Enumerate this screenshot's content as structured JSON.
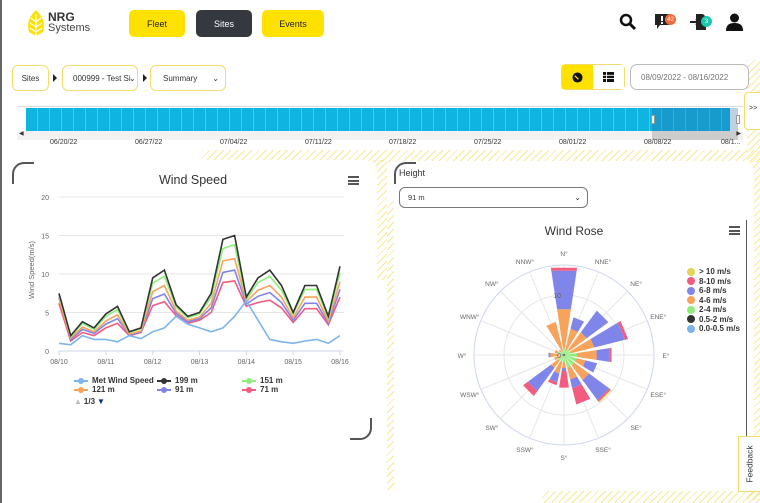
{
  "header": {
    "logo_line1": "NRG",
    "logo_line2": "Systems",
    "nav": [
      {
        "label": "Fleet",
        "active": false
      },
      {
        "label": "Sites",
        "active": true
      },
      {
        "label": "Events",
        "active": false
      }
    ],
    "alerts_count": "42",
    "exports_count": "3",
    "icons": [
      "search-icon",
      "alert-icon",
      "export-icon",
      "user-icon"
    ]
  },
  "breadcrumb": {
    "sites_label": "Sites",
    "site_select": "000999 - Test Si",
    "view_select": "Summary"
  },
  "date_range": {
    "placeholder": "08/09/2022 - 08/16/2022"
  },
  "timeline": {
    "dates": [
      "06/20/22",
      "06/27/22",
      "07/04/22",
      "07/11/22",
      "07/18/22",
      "07/25/22",
      "08/01/22",
      "08/08/22",
      "08/1..."
    ],
    "expand_label": ">>"
  },
  "height_filter": {
    "label": "Height",
    "value": "91 m"
  },
  "feedback_label": "Feedback",
  "colors": {
    "accent": "#ffe100",
    "timeline": "#10b4e0",
    "dark": "#35383e"
  },
  "chart_data": [
    {
      "type": "line",
      "title": "Wind Speed",
      "ylabel": "Wind Speed(m/s)",
      "ylim": [
        0,
        20
      ],
      "yticks": [
        "0",
        "5",
        "10",
        "15",
        "20"
      ],
      "xticks": [
        "08/10",
        "08/11",
        "08/12",
        "08/13",
        "08/14",
        "08/15",
        "08/16"
      ],
      "x_step_hours": 6,
      "legend_page": "1/3",
      "series": [
        {
          "name": "Met Wind Speed",
          "color": "#7cb5ec",
          "values": [
            1.0,
            0.8,
            2.0,
            1.5,
            1.5,
            1.2,
            2.0,
            1.6,
            2.5,
            3.0,
            4.5,
            3.5,
            3.0,
            2.5,
            3.0,
            4.5,
            6.5,
            4.0,
            1.5,
            1.2,
            1.0,
            1.3,
            1.5,
            1.0,
            2.0
          ]
        },
        {
          "name": "199 m",
          "color": "#333333",
          "values": [
            7.5,
            2.0,
            3.8,
            3.0,
            4.8,
            5.8,
            2.5,
            3.0,
            9.5,
            10.5,
            6.0,
            4.5,
            5.0,
            7.5,
            14.5,
            15.0,
            7.0,
            9.5,
            10.5,
            8.5,
            5.0,
            8.5,
            8.5,
            4.5,
            11.0
          ]
        },
        {
          "name": "151 m",
          "color": "#90ed7d",
          "values": [
            7.3,
            1.9,
            3.6,
            2.8,
            4.5,
            5.4,
            2.4,
            2.9,
            8.8,
            9.7,
            5.7,
            4.3,
            4.8,
            7.0,
            13.3,
            13.8,
            6.7,
            8.9,
            9.7,
            7.9,
            4.8,
            8.0,
            8.0,
            4.3,
            10.2
          ]
        },
        {
          "name": "121 m",
          "color": "#f7a35c",
          "values": [
            6.8,
            1.7,
            3.1,
            2.5,
            3.9,
            4.7,
            2.2,
            2.6,
            7.7,
            8.5,
            5.2,
            4.0,
            4.4,
            6.2,
            11.7,
            12.0,
            6.4,
            7.9,
            8.5,
            7.0,
            4.3,
            7.0,
            7.0,
            3.9,
            9.0
          ]
        },
        {
          "name": "91 m",
          "color": "#8085e9",
          "values": [
            7.0,
            1.5,
            2.8,
            2.3,
            3.5,
            4.2,
            2.1,
            2.5,
            6.8,
            7.4,
            4.9,
            3.8,
            4.2,
            5.6,
            10.2,
            10.5,
            6.1,
            7.1,
            7.6,
            6.3,
            4.0,
            6.2,
            6.2,
            3.6,
            8.0
          ]
        },
        {
          "name": "71 m",
          "color": "#f15c80",
          "values": [
            6.2,
            1.3,
            2.4,
            2.0,
            3.0,
            3.6,
            2.0,
            2.4,
            5.9,
            6.4,
            4.6,
            3.6,
            4.0,
            5.0,
            8.9,
            9.1,
            5.8,
            6.3,
            6.6,
            5.6,
            3.7,
            5.5,
            5.5,
            3.4,
            7.0
          ]
        }
      ]
    },
    {
      "type": "wind-rose",
      "title": "Wind Rose",
      "directions": [
        "N°",
        "NNE°",
        "NE°",
        "ENE°",
        "E°",
        "ESE°",
        "SE°",
        "SSE°",
        "S°",
        "SSW°",
        "SW°",
        "WSW°",
        "W°",
        "WNW°",
        "NW°",
        "NNW°"
      ],
      "radial_labels": [
        "0",
        "10"
      ],
      "rmax": 15,
      "bins": [
        {
          "name": "0.0-0.5 m/s",
          "color": "#7cb5ec",
          "values": [
            0,
            0,
            0,
            0,
            0,
            0,
            0,
            0,
            0,
            0,
            0,
            0,
            0,
            0,
            0,
            0
          ]
        },
        {
          "name": "0.5-2 m/s",
          "color": "#333333",
          "values": [
            0.2,
            0.2,
            0.2,
            0.2,
            0.2,
            0.2,
            0.2,
            0.2,
            0.2,
            0.2,
            0.2,
            0.2,
            0.3,
            0.3,
            0.2,
            0.2
          ]
        },
        {
          "name": "2-4 m/s",
          "color": "#90ed7d",
          "values": [
            1,
            0.5,
            1,
            1,
            2,
            2,
            2,
            2,
            1,
            1,
            1,
            0.5,
            0.5,
            0.8,
            0.5,
            0.5
          ]
        },
        {
          "name": "4-6 m/s",
          "color": "#f7a35c",
          "values": [
            6.5,
            3.8,
            3.5,
            4,
            3.3,
            1.5,
            3,
            2,
            1,
            2,
            1.5,
            1,
            1.5,
            0.5,
            0.4,
            5
          ]
        },
        {
          "name": "6-8 m/s",
          "color": "#8085e9",
          "values": [
            6.5,
            2,
            4.5,
            5.3,
            2.2,
            2,
            4.2,
            1.5,
            0.5,
            1.5,
            4.8,
            0,
            0.3,
            0,
            0,
            0
          ]
        },
        {
          "name": "8-10 m/s",
          "color": "#f15c80",
          "values": [
            0.5,
            0,
            0,
            0.5,
            0.3,
            0,
            0.3,
            2.8,
            2.8,
            0.5,
            1,
            0,
            0,
            0,
            0,
            0
          ]
        },
        {
          "name": "> 10 m/s",
          "color": "#e4d354",
          "values": [
            0,
            0,
            0,
            0,
            0,
            0,
            0.2,
            0,
            0,
            0,
            0,
            0,
            0,
            0,
            0,
            0
          ]
        }
      ]
    }
  ]
}
